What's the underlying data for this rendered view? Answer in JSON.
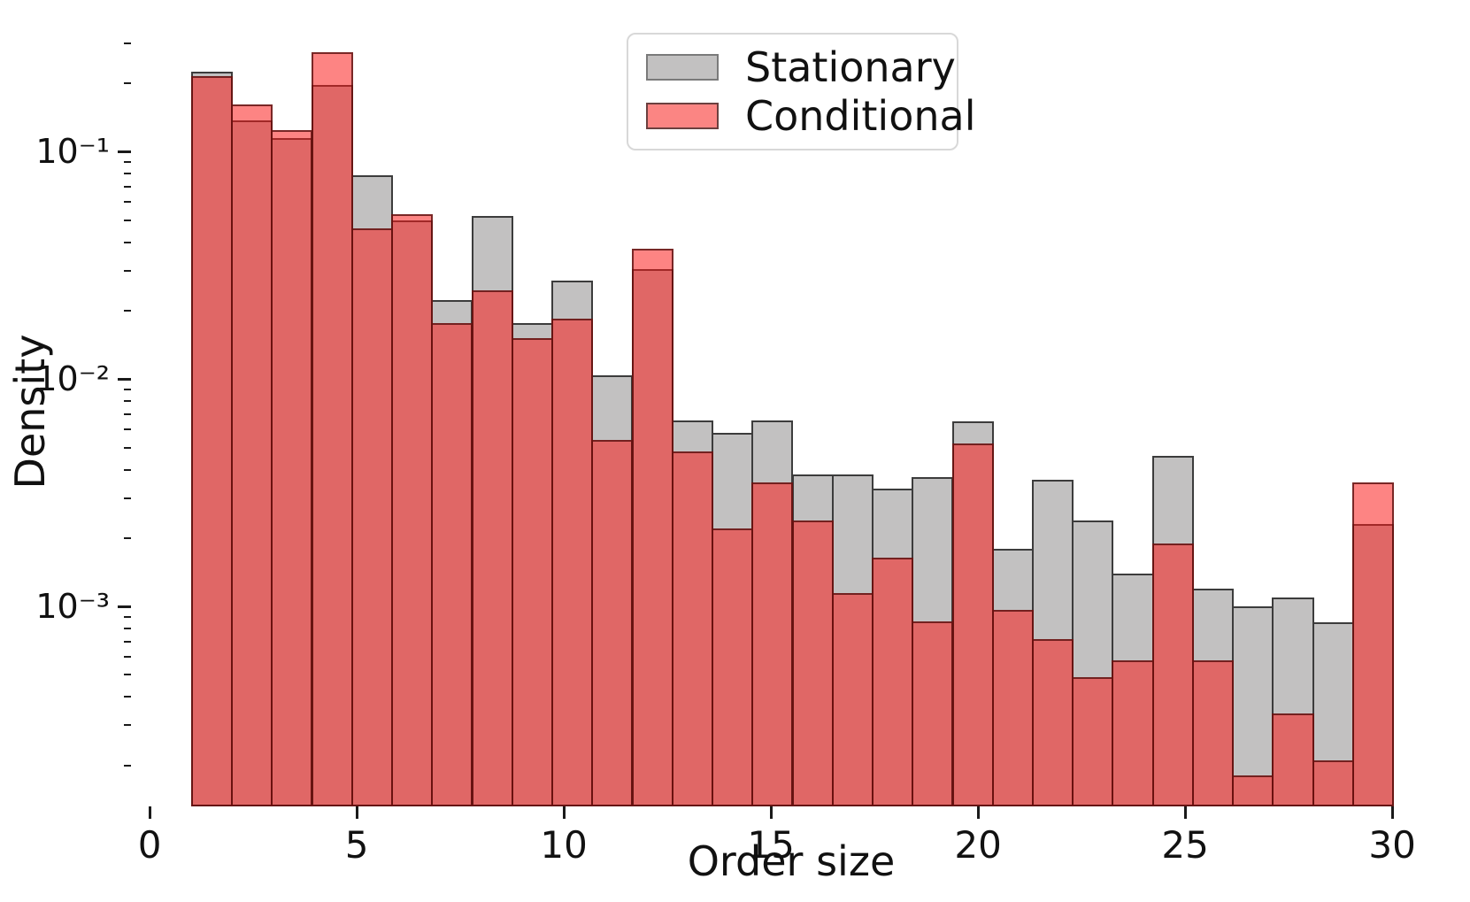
{
  "chart_data": {
    "type": "histogram",
    "title": "",
    "xlabel": "Order size",
    "ylabel": "Density",
    "yscale": "log",
    "grid": false,
    "legend_position": "upper center",
    "bin_start": 1,
    "bin_end": 30,
    "n_bins": 30,
    "xlim": [
      -0.45,
      31.45
    ],
    "ylim": [
      0.000132,
      0.375
    ],
    "x_ticks": [
      0,
      5,
      10,
      15,
      20,
      25,
      30
    ],
    "y_major_ticks": [
      {
        "value": 0.1,
        "label": "10⁻¹"
      },
      {
        "value": 0.01,
        "label": "10⁻²"
      },
      {
        "value": 0.001,
        "label": "10⁻³"
      }
    ],
    "series": [
      {
        "name": "Stationary",
        "fill": "#c2c1c1",
        "edge": "#3a3a3a",
        "values": [
          0.226,
          0.138,
          0.115,
          0.196,
          0.079,
          0.05,
          0.0223,
          0.0523,
          0.0177,
          0.0271,
          0.0104,
          0.0306,
          0.0066,
          0.0058,
          0.0066,
          0.0038,
          0.0038,
          0.0033,
          0.0037,
          0.0065,
          0.0018,
          0.0036,
          0.0024,
          0.0014,
          0.0046,
          0.0012,
          0.001,
          0.0011,
          0.00085,
          0.0023
        ]
      },
      {
        "name": "Conditional",
        "fill": "#fb8583",
        "edge": "#6b403f",
        "values": [
          0.215,
          0.161,
          0.125,
          0.274,
          0.046,
          0.053,
          0.0176,
          0.0246,
          0.0151,
          0.0184,
          0.0054,
          0.0373,
          0.0048,
          0.0022,
          0.0035,
          0.0024,
          0.00115,
          0.00164,
          0.00086,
          0.0052,
          0.00097,
          0.00072,
          0.00049,
          0.00058,
          0.0019,
          0.00058,
          0.00018,
          0.00034,
          0.00021,
          0.0035
        ]
      }
    ]
  },
  "legend": {
    "items": [
      {
        "label": "Stationary",
        "swatch_fill": "#c2c1c1",
        "swatch_edge": "#7a7a7a"
      },
      {
        "label": "Conditional",
        "swatch_fill": "#fb8583",
        "swatch_edge": "#6b403f"
      }
    ]
  }
}
